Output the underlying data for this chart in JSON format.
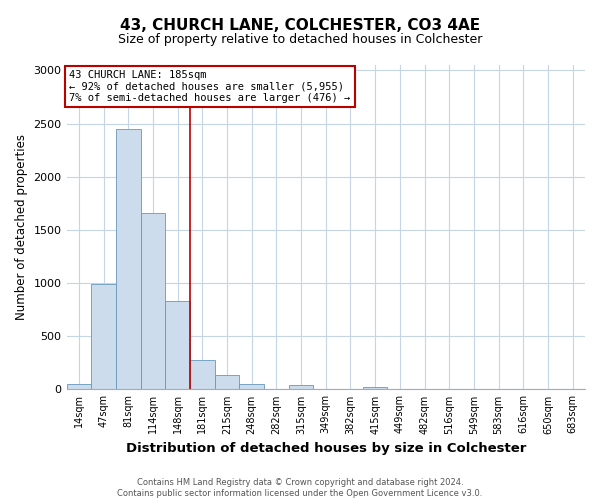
{
  "title": "43, CHURCH LANE, COLCHESTER, CO3 4AE",
  "subtitle": "Size of property relative to detached houses in Colchester",
  "xlabel": "Distribution of detached houses by size in Colchester",
  "ylabel": "Number of detached properties",
  "bin_labels": [
    "14sqm",
    "47sqm",
    "81sqm",
    "114sqm",
    "148sqm",
    "181sqm",
    "215sqm",
    "248sqm",
    "282sqm",
    "315sqm",
    "349sqm",
    "382sqm",
    "415sqm",
    "449sqm",
    "482sqm",
    "516sqm",
    "549sqm",
    "583sqm",
    "616sqm",
    "650sqm",
    "683sqm"
  ],
  "bar_heights": [
    55,
    990,
    2450,
    1660,
    830,
    275,
    135,
    55,
    0,
    45,
    0,
    0,
    20,
    0,
    0,
    0,
    0,
    0,
    0,
    0,
    0
  ],
  "bar_color": "#ccdcec",
  "bar_edge_color": "#6699bb",
  "annotation_title": "43 CHURCH LANE: 185sqm",
  "annotation_line1": "← 92% of detached houses are smaller (5,955)",
  "annotation_line2": "7% of semi-detached houses are larger (476) →",
  "vline_index": 5,
  "vline_color": "#bb0000",
  "annotation_box_edgecolor": "#bb0000",
  "ylim": [
    0,
    3050
  ],
  "yticks": [
    0,
    500,
    1000,
    1500,
    2000,
    2500,
    3000
  ],
  "footer_line1": "Contains HM Land Registry data © Crown copyright and database right 2024.",
  "footer_line2": "Contains public sector information licensed under the Open Government Licence v3.0.",
  "bg_color": "#ffffff",
  "grid_color": "#c5d5e5",
  "title_fontsize": 11,
  "subtitle_fontsize": 9,
  "ylabel_fontsize": 8.5,
  "xlabel_fontsize": 9.5,
  "tick_fontsize": 7,
  "ann_fontsize": 7.5,
  "footer_fontsize": 6
}
